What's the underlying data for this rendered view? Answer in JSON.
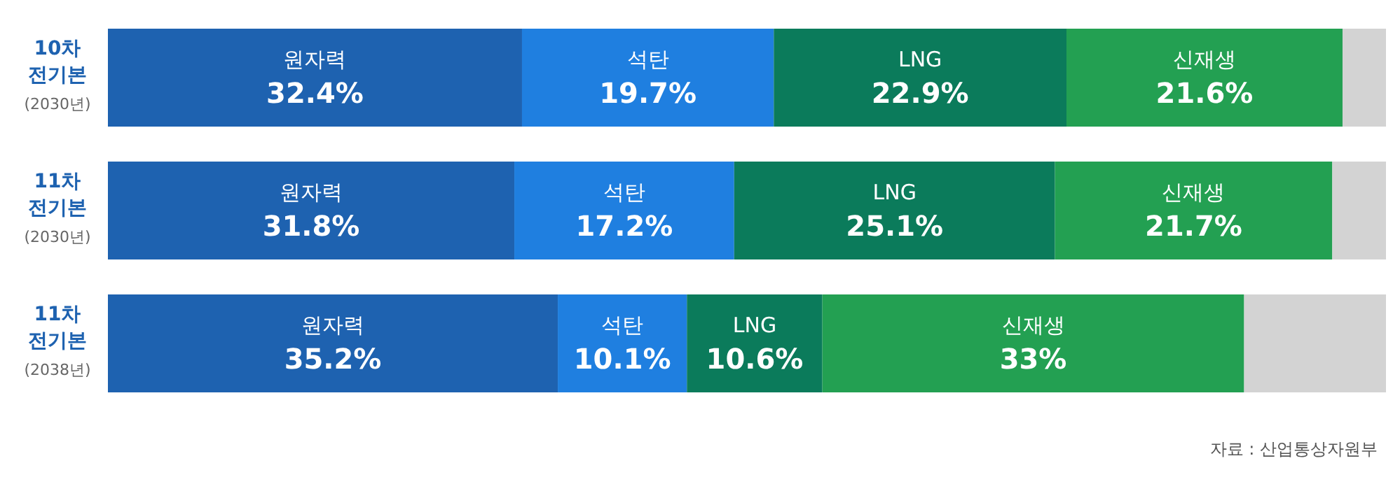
{
  "chart_data": {
    "type": "bar",
    "orientation": "horizontal",
    "stacked": true,
    "categories": [
      "10차\n전기본\n(2030년)",
      "11차\n전기본\n(2030년)",
      "11차\n전기본\n(2038년)"
    ],
    "series": [
      {
        "name": "원자력",
        "color": "#1e62b0",
        "values": [
          32.4,
          31.8,
          35.2
        ],
        "value_labels": [
          "32.4%",
          "31.8%",
          "35.2%"
        ]
      },
      {
        "name": "석탄",
        "color": "#1f7fe0",
        "values": [
          19.7,
          17.2,
          10.1
        ],
        "value_labels": [
          "19.7%",
          "17.2%",
          "10.1%"
        ]
      },
      {
        "name": "LNG",
        "color": "#0b7b5b",
        "values": [
          22.9,
          25.1,
          10.6
        ],
        "value_labels": [
          "22.9%",
          "25.1%",
          "10.6%"
        ]
      },
      {
        "name": "신재생",
        "color": "#23a052",
        "values": [
          21.6,
          21.7,
          33
        ],
        "value_labels": [
          "21.6%",
          "21.7%",
          "33%"
        ]
      },
      {
        "color": "#d3d3d3",
        "values": [
          3.4,
          4.2,
          11.1
        ]
      }
    ],
    "xlim": [
      0,
      100
    ],
    "tick_labels": "y",
    "legend": false,
    "annotations": [
      "자료 : 산업통상자원부"
    ]
  }
}
